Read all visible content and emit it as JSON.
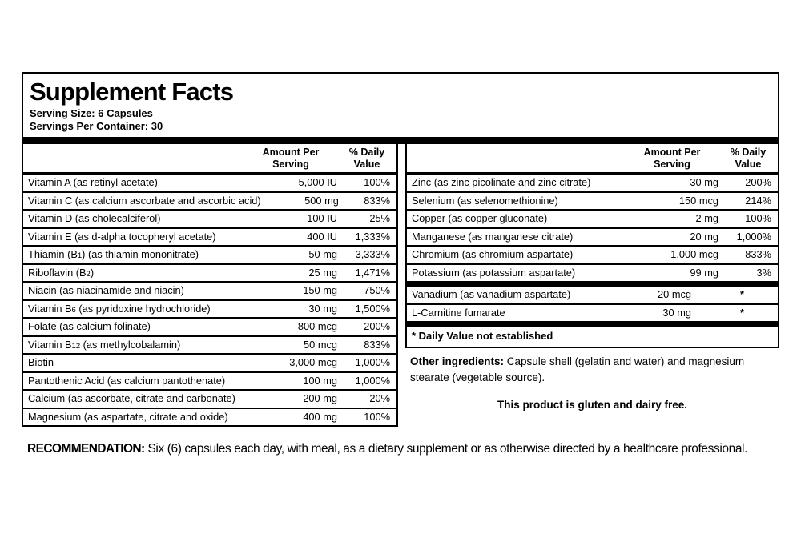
{
  "panel": {
    "title": "Supplement Facts",
    "serving_size": "Serving Size: 6 Capsules",
    "servings_per_container": "Servings Per Container: 30",
    "headers": {
      "amount": "Amount Per Serving",
      "daily_value": "% Daily Value"
    },
    "footnote": "* Daily Value not established",
    "other_ingredients": {
      "label": "Other ingredients:",
      "text": " Capsule shell (gelatin and water) and magnesium stearate (vegetable source)."
    },
    "gluten_note": "This product is gluten and dairy free."
  },
  "left_table": {
    "rows": [
      {
        "name": "Vitamin A (as retinyl acetate)",
        "amount": "5,000 IU",
        "dv": "100%"
      },
      {
        "name": "Vitamin C (as calcium ascorbate and ascorbic acid)",
        "amount": "500 mg",
        "dv": "833%"
      },
      {
        "name": "Vitamin D (as cholecalciferol)",
        "amount": "100 IU",
        "dv": "25%"
      },
      {
        "name": "Vitamin E (as d-alpha tocopheryl acetate)",
        "amount": "400 IU",
        "dv": "1,333%"
      },
      {
        "name": "Thiamin (B~1~) (as thiamin mononitrate)",
        "amount": "50 mg",
        "dv": "3,333%"
      },
      {
        "name": "Riboflavin (B~2~)",
        "amount": "25 mg",
        "dv": "1,471%"
      },
      {
        "name": "Niacin (as niacinamide and niacin)",
        "amount": "150 mg",
        "dv": "750%"
      },
      {
        "name": "Vitamin B~6~ (as pyridoxine hydrochloride)",
        "amount": "30 mg",
        "dv": "1,500%"
      },
      {
        "name": "Folate (as calcium folinate)",
        "amount": "800 mcg",
        "dv": "200%"
      },
      {
        "name": "Vitamin B~12~ (as methylcobalamin)",
        "amount": "50 mcg",
        "dv": "833%"
      },
      {
        "name": "Biotin",
        "amount": "3,000 mcg",
        "dv": "1,000%"
      },
      {
        "name": "Pantothenic Acid (as calcium pantothenate)",
        "amount": "100 mg",
        "dv": "1,000%"
      },
      {
        "name": "Calcium (as ascorbate, citrate and carbonate)",
        "amount": "200 mg",
        "dv": "20%"
      },
      {
        "name": "Magnesium (as aspartate, citrate and oxide)",
        "amount": "400 mg",
        "dv": "100%"
      }
    ]
  },
  "right_table": {
    "main_rows": [
      {
        "name": "Zinc (as zinc picolinate and zinc citrate)",
        "amount": "30 mg",
        "dv": "200%"
      },
      {
        "name": "Selenium (as selenomethionine)",
        "amount": "150 mcg",
        "dv": "214%"
      },
      {
        "name": "Copper (as copper gluconate)",
        "amount": "2 mg",
        "dv": "100%"
      },
      {
        "name": "Manganese (as manganese citrate)",
        "amount": "20 mg",
        "dv": "1,000%"
      },
      {
        "name": "Chromium (as chromium aspartate)",
        "amount": "1,000 mcg",
        "dv": "833%"
      },
      {
        "name": "Potassium (as potassium aspartate)",
        "amount": "99 mg",
        "dv": "3%"
      }
    ],
    "no_dv_rows": [
      {
        "name": "Vanadium (as vanadium aspartate)",
        "amount": "20 mcg",
        "dv": "*"
      },
      {
        "name": "L-Carnitine fumarate",
        "amount": "30 mg",
        "dv": "*"
      }
    ]
  },
  "recommendation": {
    "label": "RECOMMENDATION:",
    "text": " Six (6) capsules each day, with meal, as a dietary supplement or as otherwise directed by a healthcare professional."
  }
}
